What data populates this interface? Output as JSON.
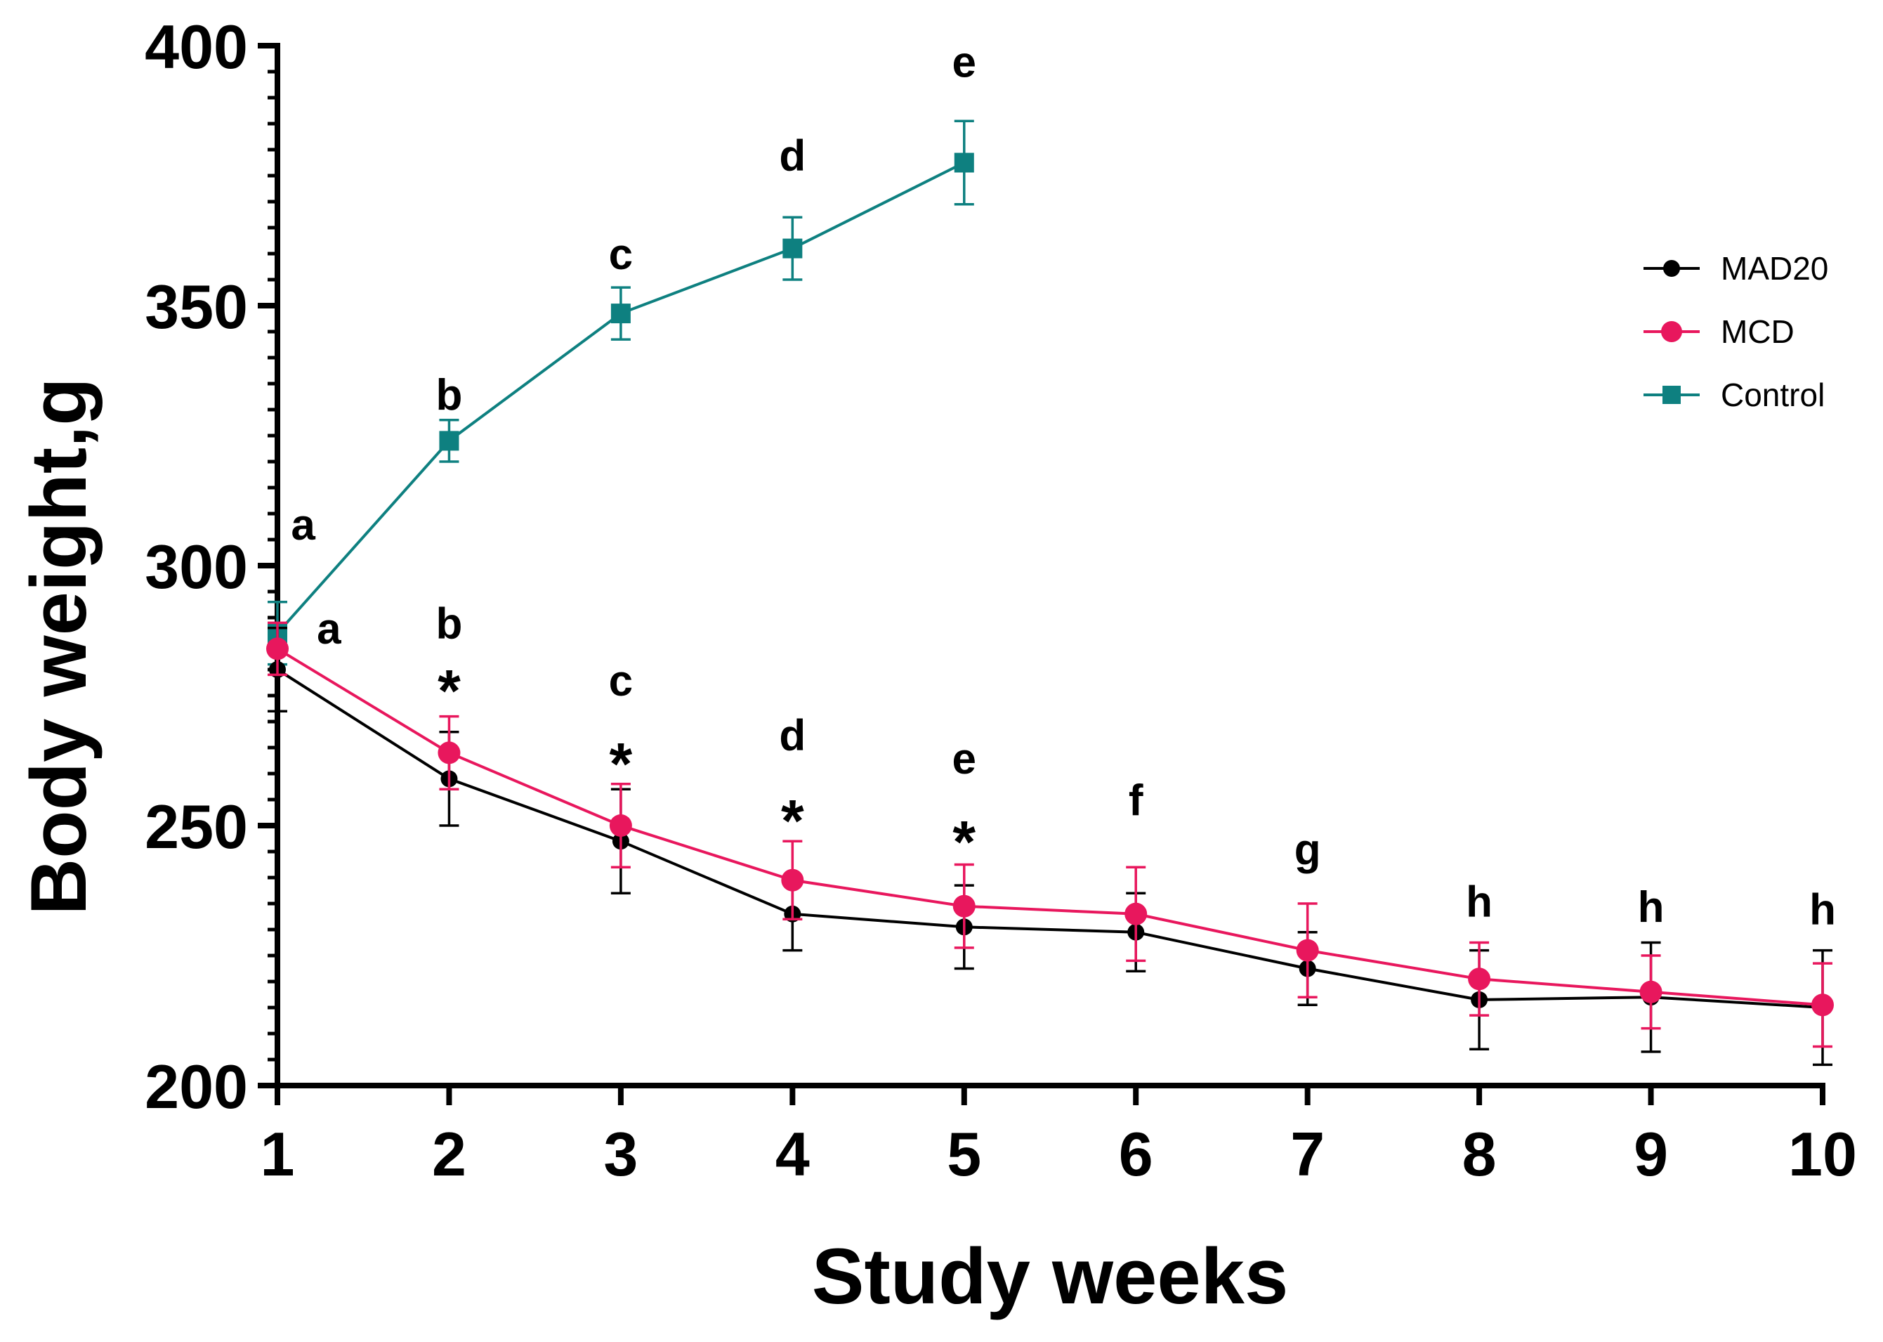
{
  "chart_data": {
    "type": "line",
    "title": "",
    "xlabel": "Study weeks",
    "ylabel": "Body weight,g",
    "xlim": [
      1,
      10
    ],
    "ylim": [
      200,
      400
    ],
    "x_ticks": [
      "1",
      "2",
      "3",
      "4",
      "5",
      "6",
      "7",
      "8",
      "9",
      "10"
    ],
    "y_ticks": [
      "200",
      "250",
      "300",
      "350",
      "400"
    ],
    "y_minor_step": 5,
    "legend_position": "top-right",
    "series": [
      {
        "name": "MAD20",
        "color": "#000000",
        "marker": "circle",
        "x": [
          1,
          2,
          3,
          4,
          5,
          6,
          7,
          8,
          9,
          10
        ],
        "values": [
          280,
          259,
          247,
          233,
          230.5,
          229.5,
          222.5,
          216.5,
          217,
          215
        ],
        "errors": [
          8,
          9,
          10,
          7,
          8,
          7.5,
          7,
          9.5,
          10.5,
          11
        ]
      },
      {
        "name": "MCD",
        "color": "#e8175d",
        "marker": "circle",
        "x": [
          1,
          2,
          3,
          4,
          5,
          6,
          7,
          8,
          9,
          10
        ],
        "values": [
          284,
          264,
          250,
          239.5,
          234.5,
          233,
          226,
          220.5,
          218,
          215.5
        ],
        "errors": [
          5,
          7,
          8,
          7.5,
          8,
          9,
          9,
          7,
          7,
          8
        ]
      },
      {
        "name": "Control",
        "color": "#0e8080",
        "marker": "square",
        "x": [
          1,
          2,
          3,
          4,
          5
        ],
        "values": [
          287,
          324,
          348.5,
          361,
          377.5
        ],
        "errors": [
          6,
          4,
          5,
          6,
          8
        ]
      }
    ],
    "annotations": [
      {
        "text": "a",
        "x": 1,
        "y": 305,
        "dx": 0.15
      },
      {
        "text": "b",
        "x": 2,
        "y": 330
      },
      {
        "text": "c",
        "x": 3,
        "y": 357
      },
      {
        "text": "d",
        "x": 4,
        "y": 376
      },
      {
        "text": "e",
        "x": 5,
        "y": 394
      },
      {
        "text": "a",
        "x": 1,
        "y": 285,
        "dx": 0.3
      },
      {
        "text": "b",
        "x": 2,
        "y": 286
      },
      {
        "text": "c",
        "x": 3,
        "y": 275
      },
      {
        "text": "d",
        "x": 4,
        "y": 264.5
      },
      {
        "text": "e",
        "x": 5,
        "y": 260
      },
      {
        "text": "f",
        "x": 6,
        "y": 252
      },
      {
        "text": "g",
        "x": 7,
        "y": 242.5
      },
      {
        "text": "h",
        "x": 8,
        "y": 232.5
      },
      {
        "text": "h",
        "x": 9,
        "y": 231.5
      },
      {
        "text": "h",
        "x": 10,
        "y": 231
      }
    ],
    "significance": [
      {
        "text": "*",
        "x": 2,
        "y": 272
      },
      {
        "text": "*",
        "x": 3,
        "y": 258
      },
      {
        "text": "*",
        "x": 4,
        "y": 247
      },
      {
        "text": "*",
        "x": 5,
        "y": 243
      }
    ]
  }
}
